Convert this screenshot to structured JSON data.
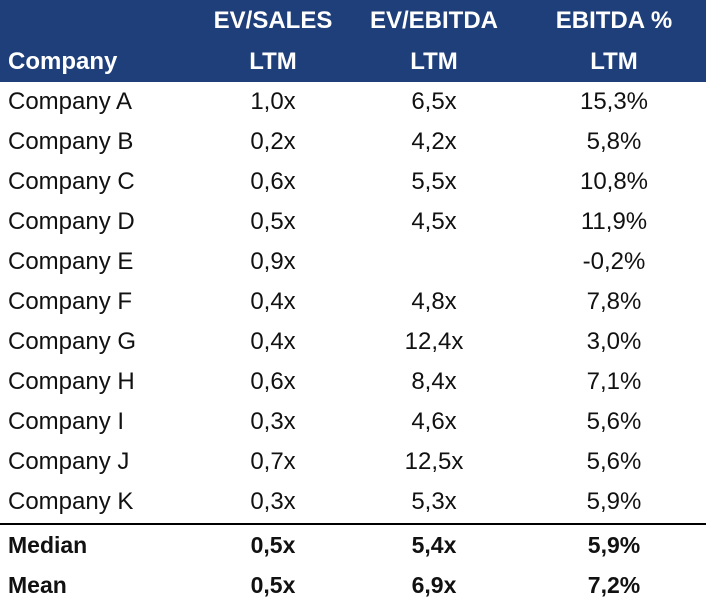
{
  "header": {
    "row1": [
      "",
      "EV/SALES",
      "EV/EBITDA",
      "EBITDA %"
    ],
    "row2": [
      "Company",
      "LTM",
      "LTM",
      "LTM"
    ]
  },
  "rows": [
    {
      "company": "Company A",
      "ev_sales": "1,0x",
      "ev_ebitda": "6,5x",
      "ebitda_pct": "15,3%"
    },
    {
      "company": "Company B",
      "ev_sales": "0,2x",
      "ev_ebitda": "4,2x",
      "ebitda_pct": "5,8%"
    },
    {
      "company": "Company C",
      "ev_sales": "0,6x",
      "ev_ebitda": "5,5x",
      "ebitda_pct": "10,8%"
    },
    {
      "company": "Company D",
      "ev_sales": "0,5x",
      "ev_ebitda": "4,5x",
      "ebitda_pct": "11,9%"
    },
    {
      "company": "Company E",
      "ev_sales": "0,9x",
      "ev_ebitda": "",
      "ebitda_pct": "-0,2%"
    },
    {
      "company": "Company F",
      "ev_sales": "0,4x",
      "ev_ebitda": "4,8x",
      "ebitda_pct": "7,8%"
    },
    {
      "company": "Company G",
      "ev_sales": "0,4x",
      "ev_ebitda": "12,4x",
      "ebitda_pct": "3,0%"
    },
    {
      "company": "Company H",
      "ev_sales": "0,6x",
      "ev_ebitda": "8,4x",
      "ebitda_pct": "7,1%"
    },
    {
      "company": "Company I",
      "ev_sales": "0,3x",
      "ev_ebitda": "4,6x",
      "ebitda_pct": "5,6%"
    },
    {
      "company": "Company J",
      "ev_sales": "0,7x",
      "ev_ebitda": "12,5x",
      "ebitda_pct": "5,6%"
    },
    {
      "company": "Company K",
      "ev_sales": "0,3x",
      "ev_ebitda": "5,3x",
      "ebitda_pct": "5,9%"
    }
  ],
  "summary": [
    {
      "label": "Median",
      "ev_sales": "0,5x",
      "ev_ebitda": "5,4x",
      "ebitda_pct": "5,9%"
    },
    {
      "label": "Mean",
      "ev_sales": "0,5x",
      "ev_ebitda": "6,9x",
      "ebitda_pct": "7,2%"
    }
  ],
  "colors": {
    "header_bg": "#1f3f7a",
    "header_text": "#ffffff"
  }
}
